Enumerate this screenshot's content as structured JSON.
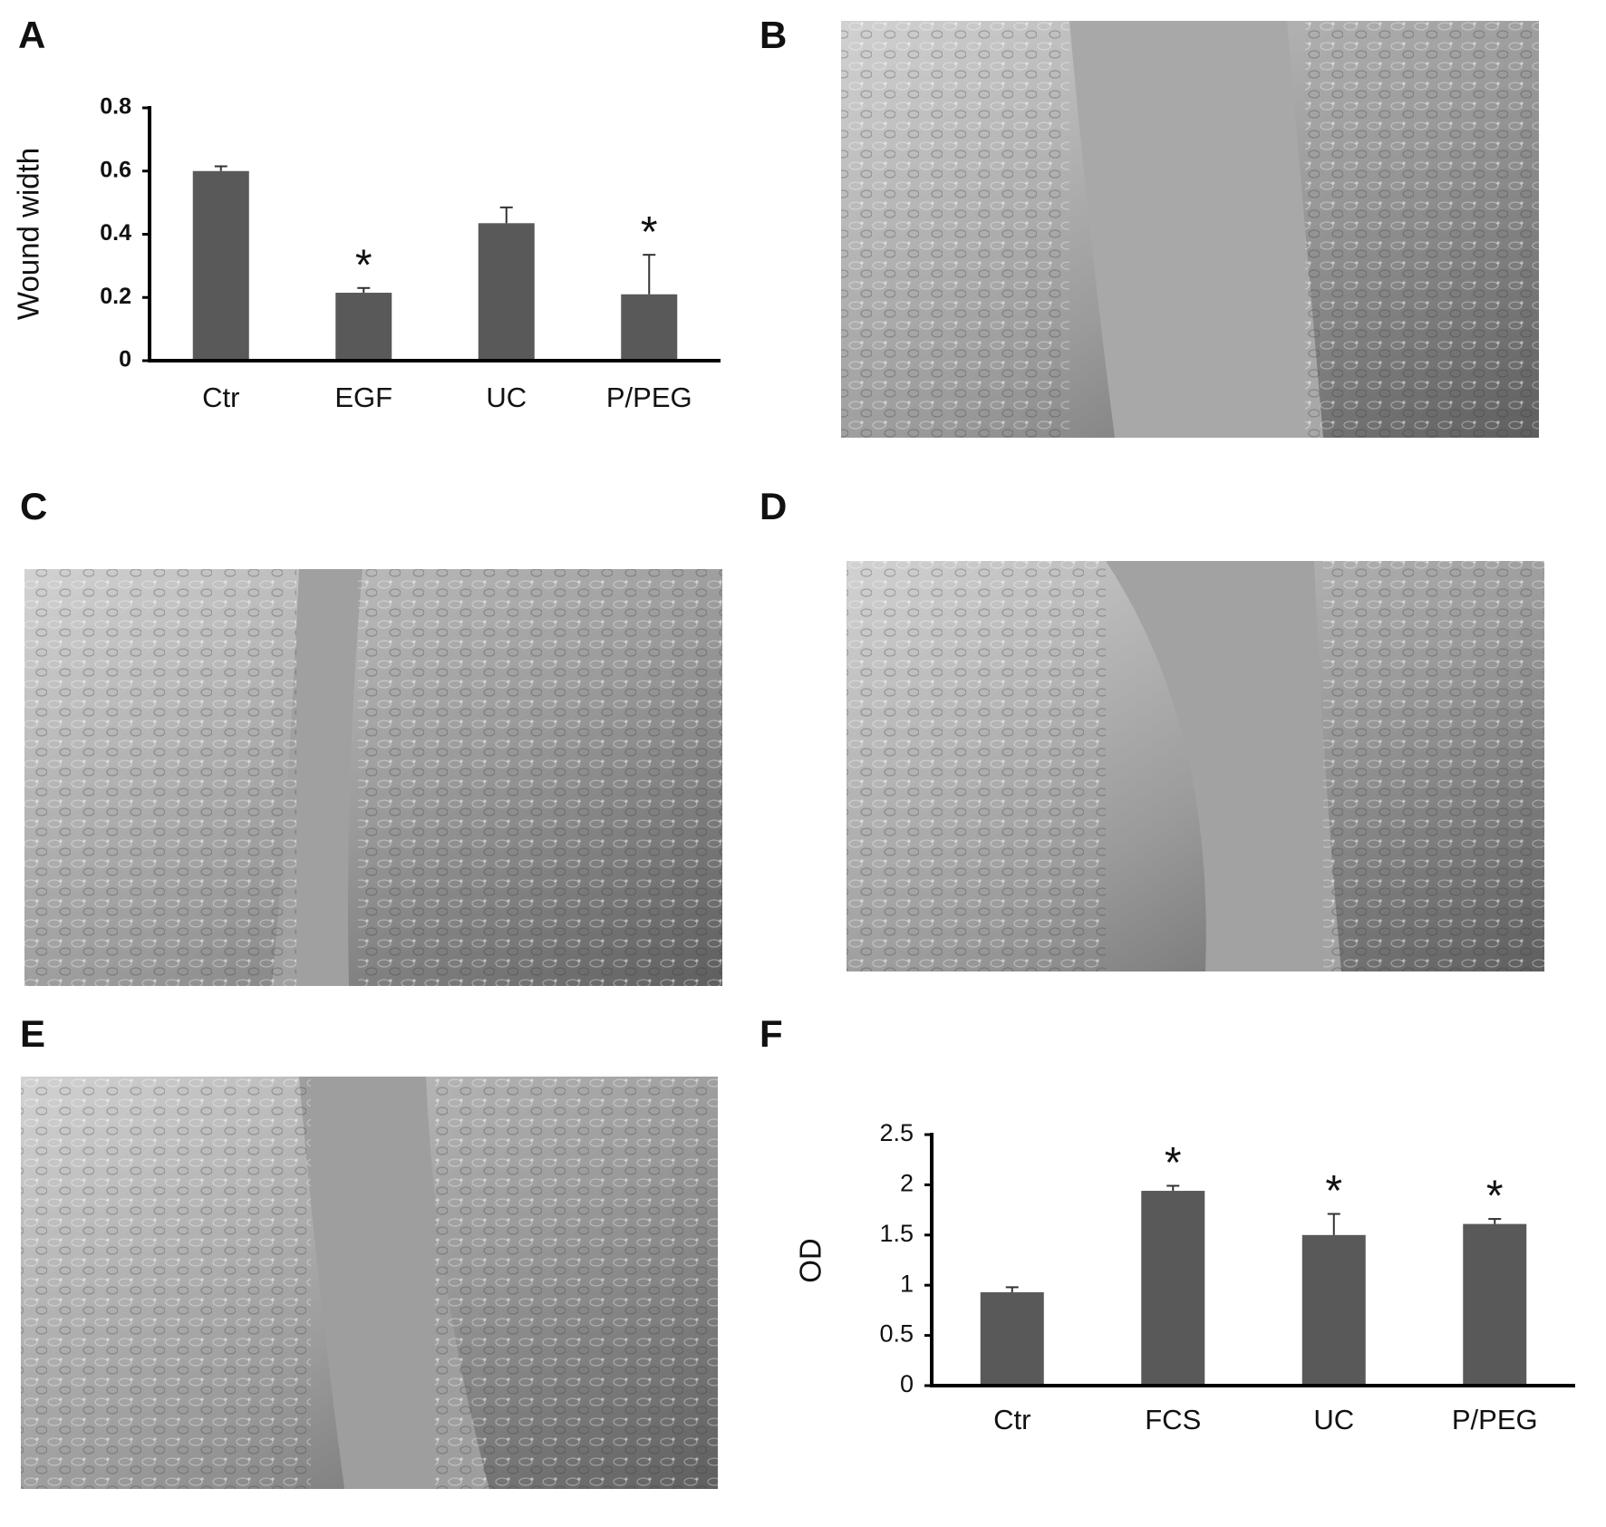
{
  "panel_labels": [
    "A",
    "B",
    "C",
    "D",
    "E",
    "F"
  ],
  "chart_data": [
    {
      "type": "bar",
      "ylabel": "Wound width",
      "categories": [
        "Ctr",
        "EGF",
        "UC",
        "P/PEG"
      ],
      "values": [
        0.6,
        0.215,
        0.435,
        0.21
      ],
      "errors": [
        0.015,
        0.015,
        0.05,
        0.125
      ],
      "markers": [
        null,
        "*",
        null,
        "*"
      ],
      "color": "#595959",
      "ylim": [
        0,
        0.8
      ],
      "yticks": [
        0,
        0.2,
        0.4,
        0.6,
        0.8
      ]
    },
    {
      "type": "bar",
      "ylabel": "OD",
      "categories": [
        "Ctr",
        "FCS",
        "UC",
        "P/PEG"
      ],
      "values": [
        0.93,
        1.94,
        1.5,
        1.61
      ],
      "errors": [
        0.05,
        0.05,
        0.21,
        0.05
      ],
      "markers": [
        null,
        "*",
        "*",
        "*"
      ],
      "color": "#595959",
      "ylim": [
        0,
        2.5
      ],
      "yticks": [
        0,
        0.5,
        1,
        1.5,
        2,
        2.5
      ]
    }
  ]
}
